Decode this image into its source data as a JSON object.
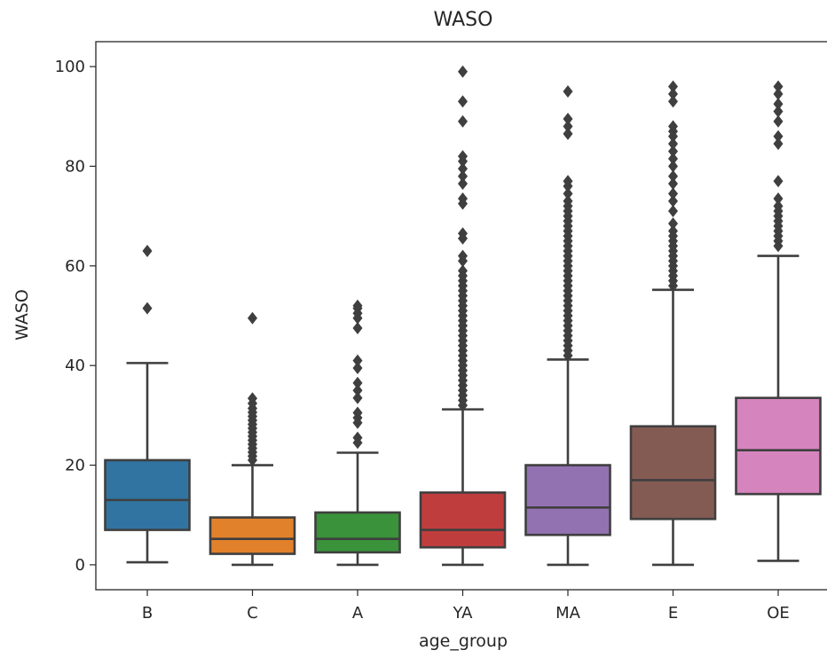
{
  "chart_data": {
    "type": "box",
    "title": "WASO",
    "xlabel": "age_group",
    "ylabel": "WASO",
    "ylim": [
      -5,
      105
    ],
    "yticks": [
      0,
      20,
      40,
      60,
      80,
      100
    ],
    "grid": false,
    "categories": [
      "B",
      "C",
      "A",
      "YA",
      "MA",
      "E",
      "OE"
    ],
    "colors": [
      "#3274a1",
      "#e1812c",
      "#3a923a",
      "#c03d3e",
      "#9372b2",
      "#845b53",
      "#d684bd"
    ],
    "line_color": "#3f3f3f",
    "boxes": [
      {
        "category": "B",
        "whislo": 0.5,
        "q1": 7,
        "med": 13,
        "q3": 21,
        "whishi": 40.5,
        "fliers": [
          51.5,
          63
        ]
      },
      {
        "category": "C",
        "whislo": 0,
        "q1": 2.2,
        "med": 5.2,
        "q3": 9.5,
        "whishi": 20,
        "fliers": [
          21,
          21.8,
          22.6,
          23.4,
          24.2,
          25,
          25.8,
          26.6,
          27.4,
          28.2,
          29,
          29.8,
          30.6,
          31.4,
          32.4,
          33.4,
          49.5
        ]
      },
      {
        "category": "A",
        "whislo": 0,
        "q1": 2.5,
        "med": 5.2,
        "q3": 10.5,
        "whishi": 22.5,
        "fliers": [
          24.5,
          25.5,
          28.5,
          29.5,
          30.5,
          33.5,
          35,
          36.5,
          39.5,
          41,
          47.5,
          49.5,
          50.5,
          51.5,
          52
        ]
      },
      {
        "category": "YA",
        "whislo": 0,
        "q1": 3.5,
        "med": 7,
        "q3": 14.5,
        "whishi": 31.2,
        "fliers": [
          32,
          33,
          34,
          35,
          36,
          37,
          38,
          39,
          40,
          41,
          42,
          43,
          44,
          45,
          46,
          47,
          48,
          49,
          50,
          51,
          52,
          53,
          54,
          55,
          56,
          57,
          58,
          59,
          61,
          62,
          65.5,
          66.5,
          72.5,
          73.5,
          76.5,
          78,
          79.5,
          81,
          82,
          89,
          93,
          99
        ]
      },
      {
        "category": "MA",
        "whislo": 0,
        "q1": 6,
        "med": 11.5,
        "q3": 20,
        "whishi": 41.2,
        "fliers": [
          42,
          43,
          44,
          45,
          46,
          47,
          48,
          49,
          50,
          51,
          52,
          53,
          54,
          55,
          56,
          57,
          58,
          59,
          60,
          61,
          62,
          63,
          64,
          65,
          66,
          67,
          68,
          69,
          70,
          71,
          72,
          73,
          74.5,
          76,
          77,
          86.5,
          88,
          89.5,
          95
        ]
      },
      {
        "category": "E",
        "whislo": 0,
        "q1": 9.2,
        "med": 17,
        "q3": 27.8,
        "whishi": 55.2,
        "fliers": [
          56,
          57,
          58,
          59,
          60,
          61,
          62,
          63,
          64,
          65,
          66,
          67,
          68.5,
          71,
          73,
          74.5,
          76.5,
          78,
          80,
          81.5,
          83,
          84.5,
          86,
          87,
          88,
          93,
          94.5,
          96
        ]
      },
      {
        "category": "OE",
        "whislo": 0.8,
        "q1": 14.2,
        "med": 23,
        "q3": 33.5,
        "whishi": 62,
        "fliers": [
          64,
          65,
          66,
          67,
          68,
          69,
          70,
          71,
          72,
          73.5,
          77,
          84.5,
          86,
          89,
          91,
          92.5,
          94.5,
          96
        ]
      }
    ]
  }
}
